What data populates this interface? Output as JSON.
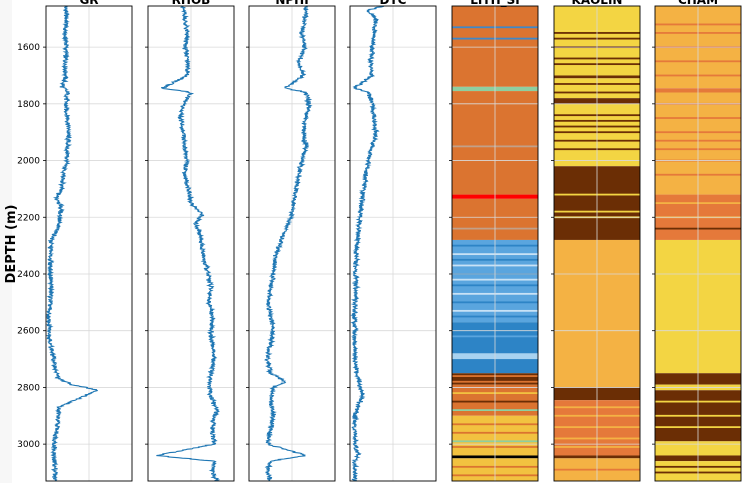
{
  "chart_data": {
    "type": "line",
    "ylabel": "DEPTH (m)",
    "ylim": [
      1455,
      3130
    ],
    "y_inverted": true,
    "yticks": [
      1600,
      1800,
      2000,
      2200,
      2400,
      2600,
      2800,
      3000
    ],
    "grid": true,
    "curve_color": "#1f77b4",
    "panels": [
      {
        "title": "GR",
        "kind": "curve",
        "xlim": [
          0,
          200
        ],
        "points": [
          [
            1455,
            45
          ],
          [
            1500,
            48
          ],
          [
            1550,
            44
          ],
          [
            1600,
            47
          ],
          [
            1650,
            45
          ],
          [
            1700,
            46
          ],
          [
            1740,
            38
          ],
          [
            1760,
            50
          ],
          [
            1800,
            46
          ],
          [
            1850,
            50
          ],
          [
            1900,
            52
          ],
          [
            1950,
            50
          ],
          [
            2000,
            48
          ],
          [
            2050,
            40
          ],
          [
            2100,
            36
          ],
          [
            2130,
            25
          ],
          [
            2160,
            35
          ],
          [
            2200,
            32
          ],
          [
            2250,
            25
          ],
          [
            2280,
            12
          ],
          [
            2320,
            10
          ],
          [
            2400,
            10
          ],
          [
            2450,
            12
          ],
          [
            2500,
            10
          ],
          [
            2550,
            6
          ],
          [
            2600,
            8
          ],
          [
            2650,
            10
          ],
          [
            2700,
            18
          ],
          [
            2740,
            22
          ],
          [
            2770,
            30
          ],
          [
            2790,
            60
          ],
          [
            2810,
            120
          ],
          [
            2830,
            90
          ],
          [
            2850,
            60
          ],
          [
            2870,
            30
          ],
          [
            2900,
            28
          ],
          [
            2950,
            25
          ],
          [
            3000,
            20
          ],
          [
            3050,
            18
          ],
          [
            3100,
            22
          ],
          [
            3130,
            20
          ]
        ]
      },
      {
        "title": "RHOB",
        "kind": "curve",
        "xlim": [
          1.95,
          2.95
        ],
        "points": [
          [
            1455,
            2.35
          ],
          [
            1500,
            2.38
          ],
          [
            1550,
            2.4
          ],
          [
            1600,
            2.38
          ],
          [
            1650,
            2.42
          ],
          [
            1700,
            2.4
          ],
          [
            1745,
            2.12
          ],
          [
            1760,
            2.45
          ],
          [
            1800,
            2.36
          ],
          [
            1850,
            2.33
          ],
          [
            1900,
            2.35
          ],
          [
            1950,
            2.38
          ],
          [
            2000,
            2.4
          ],
          [
            2050,
            2.38
          ],
          [
            2100,
            2.42
          ],
          [
            2150,
            2.45
          ],
          [
            2190,
            2.58
          ],
          [
            2220,
            2.5
          ],
          [
            2250,
            2.55
          ],
          [
            2300,
            2.58
          ],
          [
            2350,
            2.6
          ],
          [
            2400,
            2.65
          ],
          [
            2450,
            2.68
          ],
          [
            2500,
            2.66
          ],
          [
            2550,
            2.7
          ],
          [
            2600,
            2.68
          ],
          [
            2650,
            2.7
          ],
          [
            2700,
            2.72
          ],
          [
            2750,
            2.68
          ],
          [
            2800,
            2.66
          ],
          [
            2850,
            2.7
          ],
          [
            2880,
            2.75
          ],
          [
            2900,
            2.72
          ],
          [
            2950,
            2.7
          ],
          [
            3000,
            2.72
          ],
          [
            3040,
            2.05
          ],
          [
            3060,
            2.72
          ],
          [
            3100,
            2.7
          ],
          [
            3130,
            2.75
          ]
        ]
      },
      {
        "title": "NPHI",
        "kind": "curve",
        "xlim": [
          0.45,
          -0.15
        ],
        "points": [
          [
            1455,
            0.05
          ],
          [
            1500,
            0.06
          ],
          [
            1550,
            0.08
          ],
          [
            1600,
            0.06
          ],
          [
            1650,
            0.1
          ],
          [
            1700,
            0.07
          ],
          [
            1745,
            0.2
          ],
          [
            1760,
            0.05
          ],
          [
            1800,
            0.03
          ],
          [
            1850,
            0.06
          ],
          [
            1900,
            0.07
          ],
          [
            1950,
            0.05
          ],
          [
            2000,
            0.08
          ],
          [
            2050,
            0.1
          ],
          [
            2100,
            0.12
          ],
          [
            2150,
            0.14
          ],
          [
            2200,
            0.16
          ],
          [
            2250,
            0.2
          ],
          [
            2300,
            0.24
          ],
          [
            2350,
            0.27
          ],
          [
            2400,
            0.28
          ],
          [
            2450,
            0.3
          ],
          [
            2500,
            0.32
          ],
          [
            2550,
            0.3
          ],
          [
            2600,
            0.28
          ],
          [
            2650,
            0.3
          ],
          [
            2700,
            0.32
          ],
          [
            2750,
            0.3
          ],
          [
            2780,
            0.2
          ],
          [
            2800,
            0.28
          ],
          [
            2850,
            0.3
          ],
          [
            2900,
            0.28
          ],
          [
            2950,
            0.3
          ],
          [
            3000,
            0.32
          ],
          [
            3040,
            0.05
          ],
          [
            3060,
            0.3
          ],
          [
            3100,
            0.32
          ],
          [
            3130,
            0.3
          ]
        ]
      },
      {
        "title": "DTC",
        "kind": "curve",
        "xlim": [
          40,
          140
        ],
        "points": [
          [
            1455,
            80
          ],
          [
            1470,
            60
          ],
          [
            1500,
            70
          ],
          [
            1550,
            68
          ],
          [
            1600,
            66
          ],
          [
            1650,
            64
          ],
          [
            1700,
            65
          ],
          [
            1745,
            45
          ],
          [
            1760,
            62
          ],
          [
            1800,
            66
          ],
          [
            1850,
            68
          ],
          [
            1900,
            70
          ],
          [
            1950,
            66
          ],
          [
            2000,
            62
          ],
          [
            2050,
            58
          ],
          [
            2100,
            56
          ],
          [
            2150,
            54
          ],
          [
            2200,
            52
          ],
          [
            2250,
            50
          ],
          [
            2300,
            48
          ],
          [
            2350,
            47
          ],
          [
            2400,
            46
          ],
          [
            2450,
            47
          ],
          [
            2500,
            46
          ],
          [
            2550,
            45
          ],
          [
            2600,
            46
          ],
          [
            2650,
            45
          ],
          [
            2700,
            46
          ],
          [
            2750,
            48
          ],
          [
            2800,
            52
          ],
          [
            2830,
            55
          ],
          [
            2860,
            50
          ],
          [
            2900,
            46
          ],
          [
            2950,
            45
          ],
          [
            3000,
            46
          ],
          [
            3040,
            50
          ],
          [
            3060,
            45
          ],
          [
            3100,
            46
          ],
          [
            3130,
            45
          ]
        ]
      },
      {
        "title": "LITH_SI",
        "kind": "track",
        "intervals": [
          [
            1455,
            1740,
            "#db7430"
          ],
          [
            1740,
            1755,
            "#8ecfa0"
          ],
          [
            1755,
            2120,
            "#db7430"
          ],
          [
            2120,
            2135,
            "#ff0000"
          ],
          [
            2135,
            2280,
            "#db7430"
          ],
          [
            2280,
            2570,
            "#5aa5de"
          ],
          [
            2570,
            2680,
            "#2d84c6"
          ],
          [
            2680,
            2700,
            "#a8d2f0"
          ],
          [
            2700,
            2750,
            "#2d84c6"
          ],
          [
            2750,
            2790,
            "#6b2e05"
          ],
          [
            2790,
            2900,
            "#db7430"
          ],
          [
            2900,
            3040,
            "#f2c240"
          ],
          [
            3040,
            3050,
            "#000000"
          ],
          [
            3050,
            3130,
            "#f2c240"
          ]
        ],
        "lines": [
          [
            1530,
            "#3e88c8"
          ],
          [
            1570,
            "#3e88c8"
          ],
          [
            1950,
            "#c2a088"
          ],
          [
            2240,
            "#c2a088"
          ],
          [
            2300,
            "#2d84c6"
          ],
          [
            2330,
            "#c8e2f6"
          ],
          [
            2350,
            "#2d84c6"
          ],
          [
            2370,
            "#c8e2f6"
          ],
          [
            2400,
            "#2d84c6"
          ],
          [
            2420,
            "#c8e2f6"
          ],
          [
            2440,
            "#2d84c6"
          ],
          [
            2470,
            "#c8e2f6"
          ],
          [
            2500,
            "#2d84c6"
          ],
          [
            2530,
            "#c8e2f6"
          ],
          [
            2550,
            "#2d84c6"
          ],
          [
            2620,
            "#5aa5de"
          ],
          [
            2760,
            "#db7430"
          ],
          [
            2780,
            "#db7430"
          ],
          [
            2820,
            "#f2c240"
          ],
          [
            2850,
            "#6b2e05"
          ],
          [
            2880,
            "#8ecfa0"
          ],
          [
            2930,
            "#db7430"
          ],
          [
            2960,
            "#db7430"
          ],
          [
            2990,
            "#8ecfa0"
          ],
          [
            3010,
            "#db7430"
          ],
          [
            3080,
            "#db7430"
          ],
          [
            3110,
            "#db7430"
          ]
        ]
      },
      {
        "title": "KAOLIN",
        "kind": "track",
        "intervals": [
          [
            1455,
            1540,
            "#f3d543"
          ],
          [
            1540,
            1700,
            "#f3d543"
          ],
          [
            1700,
            1710,
            "#6b2e05"
          ],
          [
            1710,
            1780,
            "#f3d543"
          ],
          [
            1780,
            1800,
            "#6b2e05"
          ],
          [
            1800,
            2020,
            "#f3d543"
          ],
          [
            2020,
            2280,
            "#6b2e05"
          ],
          [
            2280,
            2800,
            "#f4b244"
          ],
          [
            2800,
            2845,
            "#6b2e05"
          ],
          [
            2845,
            3040,
            "#e5793a"
          ],
          [
            3040,
            3050,
            "#6b2e05"
          ],
          [
            3050,
            3130,
            "#f4b244"
          ]
        ],
        "lines": [
          [
            1550,
            "#6b2e05"
          ],
          [
            1570,
            "#6b2e05"
          ],
          [
            1600,
            "#6b2e05"
          ],
          [
            1640,
            "#6b2e05"
          ],
          [
            1660,
            "#6b2e05"
          ],
          [
            1730,
            "#6b2e05"
          ],
          [
            1760,
            "#6b2e05"
          ],
          [
            1840,
            "#6b2e05"
          ],
          [
            1860,
            "#6b2e05"
          ],
          [
            1880,
            "#6b2e05"
          ],
          [
            1900,
            "#6b2e05"
          ],
          [
            1930,
            "#6b2e05"
          ],
          [
            1960,
            "#6b2e05"
          ],
          [
            2120,
            "#f3d543"
          ],
          [
            2180,
            "#f3d543"
          ],
          [
            2200,
            "#f3d543"
          ],
          [
            2870,
            "#f4b244"
          ],
          [
            2900,
            "#f4b244"
          ],
          [
            2940,
            "#f4b244"
          ],
          [
            2980,
            "#f4b244"
          ],
          [
            3010,
            "#f4b244"
          ],
          [
            3090,
            "#e5793a"
          ]
        ]
      },
      {
        "title": "CHAM",
        "kind": "track",
        "intervals": [
          [
            1455,
            1745,
            "#f4b244"
          ],
          [
            1745,
            1760,
            "#e5793a"
          ],
          [
            1760,
            2120,
            "#f4b244"
          ],
          [
            2120,
            2280,
            "#e5793a"
          ],
          [
            2280,
            2750,
            "#f3d543"
          ],
          [
            2750,
            2790,
            "#6b2e05"
          ],
          [
            2790,
            2810,
            "#f3d543"
          ],
          [
            2810,
            2990,
            "#6b2e05"
          ],
          [
            2990,
            3040,
            "#f3d543"
          ],
          [
            3040,
            3060,
            "#6b2e05"
          ],
          [
            3060,
            3130,
            "#f3d543"
          ]
        ],
        "lines": [
          [
            1520,
            "#e5793a"
          ],
          [
            1550,
            "#e5793a"
          ],
          [
            1600,
            "#e5793a"
          ],
          [
            1650,
            "#e5793a"
          ],
          [
            1700,
            "#e5793a"
          ],
          [
            1800,
            "#e5793a"
          ],
          [
            1850,
            "#e5793a"
          ],
          [
            1900,
            "#e5793a"
          ],
          [
            1930,
            "#e5793a"
          ],
          [
            1960,
            "#e5793a"
          ],
          [
            2000,
            "#e5793a"
          ],
          [
            2050,
            "#e5793a"
          ],
          [
            2150,
            "#f4b244"
          ],
          [
            2200,
            "#f4b244"
          ],
          [
            2240,
            "#6b2e05"
          ],
          [
            2850,
            "#f3d543"
          ],
          [
            2900,
            "#f3d543"
          ],
          [
            2940,
            "#f3d543"
          ],
          [
            3080,
            "#6b2e05"
          ],
          [
            3100,
            "#6b2e05"
          ]
        ]
      }
    ]
  }
}
